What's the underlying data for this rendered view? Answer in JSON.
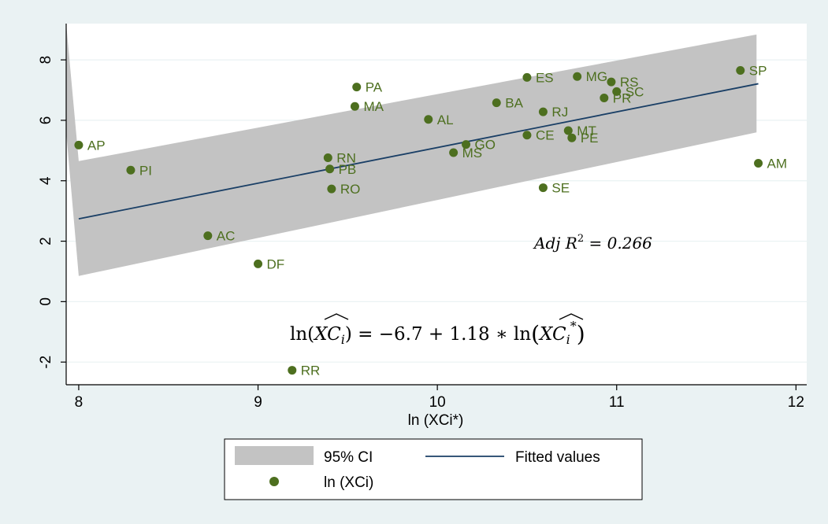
{
  "chart_data": {
    "type": "scatter",
    "xlabel": "ln (XCi*)",
    "ylabel": "",
    "xlim": [
      7.93,
      12.06
    ],
    "ylim": [
      -2.75,
      9.2
    ],
    "xticks": [
      8,
      9,
      10,
      11,
      12
    ],
    "yticks": [
      -2,
      0,
      2,
      4,
      6,
      8
    ],
    "grid": "horizontal",
    "colors": {
      "points": "#4d6f1f",
      "fit_line": "#1a3f66",
      "ci_band": "#c3c3c3"
    },
    "series": [
      {
        "name": "ln (XCi)",
        "kind": "scatter",
        "points": [
          {
            "label": "AP",
            "x": 8.0,
            "y": 5.18
          },
          {
            "label": "PI",
            "x": 8.29,
            "y": 4.35
          },
          {
            "label": "AC",
            "x": 8.72,
            "y": 2.18
          },
          {
            "label": "DF",
            "x": 9.0,
            "y": 1.25
          },
          {
            "label": "RR",
            "x": 9.19,
            "y": -2.27
          },
          {
            "label": "RN",
            "x": 9.39,
            "y": 4.76
          },
          {
            "label": "PB",
            "x": 9.4,
            "y": 4.39
          },
          {
            "label": "RO",
            "x": 9.41,
            "y": 3.73
          },
          {
            "label": "PA",
            "x": 9.55,
            "y": 7.1
          },
          {
            "label": "MA",
            "x": 9.54,
            "y": 6.46
          },
          {
            "label": "AL",
            "x": 9.95,
            "y": 6.03
          },
          {
            "label": "MS",
            "x": 10.09,
            "y": 4.93
          },
          {
            "label": "GO",
            "x": 10.16,
            "y": 5.2
          },
          {
            "label": "BA",
            "x": 10.33,
            "y": 6.58
          },
          {
            "label": "ES",
            "x": 10.5,
            "y": 7.42
          },
          {
            "label": "CE",
            "x": 10.5,
            "y": 5.51
          },
          {
            "label": "RJ",
            "x": 10.59,
            "y": 6.28
          },
          {
            "label": "SE",
            "x": 10.59,
            "y": 3.77
          },
          {
            "label": "MG",
            "x": 10.78,
            "y": 7.45
          },
          {
            "label": "MT",
            "x": 10.73,
            "y": 5.66
          },
          {
            "label": "PE",
            "x": 10.75,
            "y": 5.42
          },
          {
            "label": "RS",
            "x": 10.97,
            "y": 7.27
          },
          {
            "label": "SC",
            "x": 11.0,
            "y": 6.95
          },
          {
            "label": "PR",
            "x": 10.93,
            "y": 6.74
          },
          {
            "label": "SP",
            "x": 11.69,
            "y": 7.65
          },
          {
            "label": "AM",
            "x": 11.79,
            "y": 4.58
          }
        ]
      },
      {
        "name": "Fitted values",
        "kind": "line",
        "x": [
          8.0,
          11.79
        ],
        "y": [
          2.74,
          7.21
        ]
      },
      {
        "name": "95% CI",
        "kind": "band",
        "x": [
          7.93,
          8.0,
          11.78
        ],
        "lower": [
          5.62,
          0.85,
          5.6
        ],
        "upper": [
          9.2,
          4.65,
          8.84
        ]
      }
    ],
    "annotations": {
      "r2": "Adj R² = 0.266",
      "equation": "ln(XĈᵢ) = −6.7 + 1.18 ∗ ln(XĈᵢ*)"
    },
    "legend": {
      "position": "bottom",
      "items": [
        {
          "label": "95% CI",
          "symbol": "band"
        },
        {
          "label": "Fitted values",
          "symbol": "line"
        },
        {
          "label": "ln (XCi)",
          "symbol": "dot"
        }
      ]
    }
  }
}
